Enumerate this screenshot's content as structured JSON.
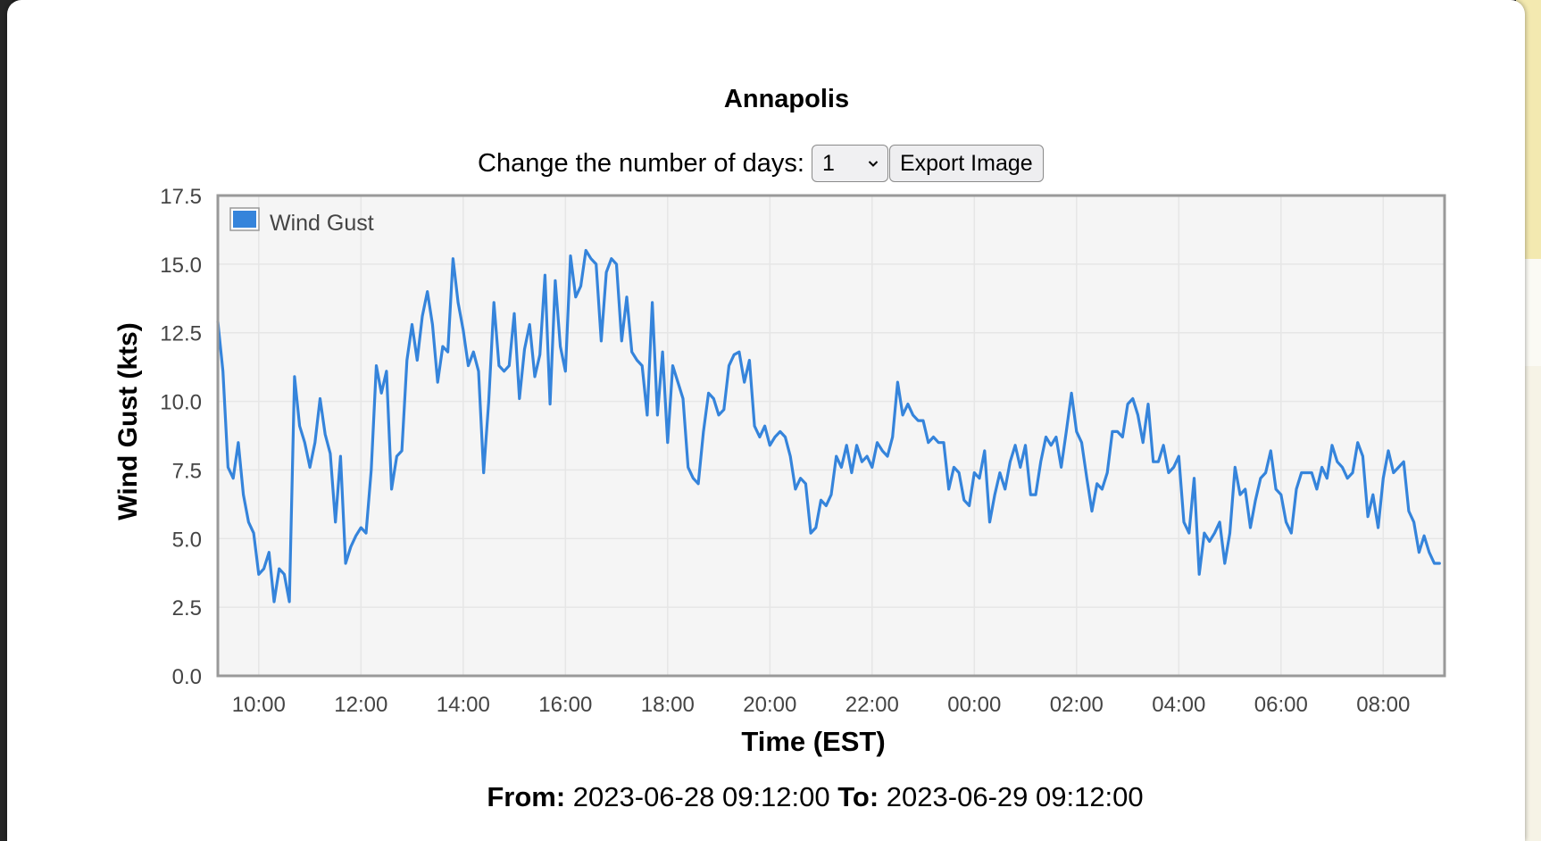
{
  "controls": {
    "days_label": "Change the number of days:",
    "days_value": "1",
    "export_label": "Export Image"
  },
  "footer": {
    "from_label": "From:",
    "from_value": "2023-06-28 09:12:00",
    "to_label": "To:",
    "to_value": "2023-06-29 09:12:00"
  },
  "colors": {
    "series": "#3584db",
    "plot_background": "#f5f5f5",
    "plot_border": "#999999",
    "grid": "#e6e6e6"
  },
  "chart_data": {
    "type": "line",
    "title": "Annapolis",
    "xlabel": "Time (EST)",
    "ylabel": "Wind Gust (kts)",
    "xlim": [
      "09:12",
      "09:12 (+1 day)"
    ],
    "ylim": [
      0,
      17.5
    ],
    "x_ticks": [
      "10:00",
      "12:00",
      "14:00",
      "16:00",
      "18:00",
      "20:00",
      "22:00",
      "00:00",
      "02:00",
      "04:00",
      "06:00",
      "08:00"
    ],
    "y_ticks": [
      "0.0",
      "2.5",
      "5.0",
      "7.5",
      "10.0",
      "12.5",
      "15.0",
      "17.5"
    ],
    "grid": true,
    "legend": {
      "position": "top-left",
      "entries": [
        "Wind Gust"
      ]
    },
    "x_unit": "minutes after 2023-06-28 09:12",
    "series": [
      {
        "name": "Wind Gust",
        "color": "#3584db",
        "values": [
          [
            0,
            12.9
          ],
          [
            6,
            11.1
          ],
          [
            12,
            7.6
          ],
          [
            18,
            7.2
          ],
          [
            24,
            8.5
          ],
          [
            30,
            6.6
          ],
          [
            36,
            5.6
          ],
          [
            42,
            5.2
          ],
          [
            48,
            3.7
          ],
          [
            54,
            3.9
          ],
          [
            60,
            4.5
          ],
          [
            66,
            2.7
          ],
          [
            72,
            3.9
          ],
          [
            78,
            3.7
          ],
          [
            84,
            2.7
          ],
          [
            90,
            10.9
          ],
          [
            96,
            9.1
          ],
          [
            102,
            8.5
          ],
          [
            108,
            7.6
          ],
          [
            114,
            8.5
          ],
          [
            120,
            10.1
          ],
          [
            126,
            8.8
          ],
          [
            132,
            8.1
          ],
          [
            138,
            5.6
          ],
          [
            144,
            8.0
          ],
          [
            150,
            4.1
          ],
          [
            156,
            4.7
          ],
          [
            162,
            5.1
          ],
          [
            168,
            5.4
          ],
          [
            174,
            5.2
          ],
          [
            180,
            7.5
          ],
          [
            186,
            11.3
          ],
          [
            192,
            10.3
          ],
          [
            198,
            11.1
          ],
          [
            204,
            6.8
          ],
          [
            210,
            8.0
          ],
          [
            216,
            8.2
          ],
          [
            222,
            11.5
          ],
          [
            228,
            12.8
          ],
          [
            234,
            11.5
          ],
          [
            240,
            13.1
          ],
          [
            246,
            14.0
          ],
          [
            252,
            12.8
          ],
          [
            258,
            10.7
          ],
          [
            264,
            12.0
          ],
          [
            270,
            11.8
          ],
          [
            276,
            15.2
          ],
          [
            282,
            13.6
          ],
          [
            288,
            12.6
          ],
          [
            294,
            11.3
          ],
          [
            300,
            11.8
          ],
          [
            306,
            11.1
          ],
          [
            312,
            7.4
          ],
          [
            318,
            10.0
          ],
          [
            324,
            13.6
          ],
          [
            330,
            11.3
          ],
          [
            336,
            11.1
          ],
          [
            342,
            11.3
          ],
          [
            348,
            13.2
          ],
          [
            354,
            10.1
          ],
          [
            360,
            11.9
          ],
          [
            366,
            12.8
          ],
          [
            372,
            10.9
          ],
          [
            378,
            11.7
          ],
          [
            384,
            14.6
          ],
          [
            390,
            9.9
          ],
          [
            396,
            14.4
          ],
          [
            402,
            12.0
          ],
          [
            408,
            11.1
          ],
          [
            414,
            15.3
          ],
          [
            420,
            13.8
          ],
          [
            426,
            14.2
          ],
          [
            432,
            15.5
          ],
          [
            438,
            15.2
          ],
          [
            444,
            15.0
          ],
          [
            450,
            12.2
          ],
          [
            456,
            14.7
          ],
          [
            462,
            15.2
          ],
          [
            468,
            15.0
          ],
          [
            474,
            12.2
          ],
          [
            480,
            13.8
          ],
          [
            486,
            11.8
          ],
          [
            492,
            11.5
          ],
          [
            498,
            11.3
          ],
          [
            504,
            9.5
          ],
          [
            510,
            13.6
          ],
          [
            516,
            9.5
          ],
          [
            522,
            11.8
          ],
          [
            528,
            8.5
          ],
          [
            534,
            11.3
          ],
          [
            540,
            10.7
          ],
          [
            546,
            10.1
          ],
          [
            552,
            7.6
          ],
          [
            558,
            7.2
          ],
          [
            564,
            7.0
          ],
          [
            570,
            8.9
          ],
          [
            576,
            10.3
          ],
          [
            582,
            10.1
          ],
          [
            588,
            9.5
          ],
          [
            594,
            9.7
          ],
          [
            600,
            11.3
          ],
          [
            606,
            11.7
          ],
          [
            612,
            11.8
          ],
          [
            618,
            10.7
          ],
          [
            624,
            11.5
          ],
          [
            630,
            9.1
          ],
          [
            636,
            8.7
          ],
          [
            642,
            9.1
          ],
          [
            648,
            8.4
          ],
          [
            654,
            8.7
          ],
          [
            660,
            8.9
          ],
          [
            666,
            8.7
          ],
          [
            672,
            8.0
          ],
          [
            678,
            6.8
          ],
          [
            684,
            7.2
          ],
          [
            690,
            7.0
          ],
          [
            696,
            5.2
          ],
          [
            702,
            5.4
          ],
          [
            708,
            6.4
          ],
          [
            714,
            6.2
          ],
          [
            720,
            6.6
          ],
          [
            726,
            8.0
          ],
          [
            732,
            7.6
          ],
          [
            738,
            8.4
          ],
          [
            744,
            7.4
          ],
          [
            750,
            8.4
          ],
          [
            756,
            7.8
          ],
          [
            762,
            8.0
          ],
          [
            768,
            7.6
          ],
          [
            774,
            8.5
          ],
          [
            780,
            8.2
          ],
          [
            786,
            8.0
          ],
          [
            792,
            8.7
          ],
          [
            798,
            10.7
          ],
          [
            804,
            9.5
          ],
          [
            810,
            9.9
          ],
          [
            816,
            9.5
          ],
          [
            822,
            9.3
          ],
          [
            828,
            9.3
          ],
          [
            834,
            8.5
          ],
          [
            840,
            8.7
          ],
          [
            846,
            8.5
          ],
          [
            852,
            8.5
          ],
          [
            858,
            6.8
          ],
          [
            864,
            7.6
          ],
          [
            870,
            7.4
          ],
          [
            876,
            6.4
          ],
          [
            882,
            6.2
          ],
          [
            888,
            7.4
          ],
          [
            894,
            7.2
          ],
          [
            900,
            8.2
          ],
          [
            906,
            5.6
          ],
          [
            912,
            6.6
          ],
          [
            918,
            7.4
          ],
          [
            924,
            6.8
          ],
          [
            930,
            7.8
          ],
          [
            936,
            8.4
          ],
          [
            942,
            7.6
          ],
          [
            948,
            8.4
          ],
          [
            954,
            6.6
          ],
          [
            960,
            6.6
          ],
          [
            966,
            7.8
          ],
          [
            972,
            8.7
          ],
          [
            978,
            8.4
          ],
          [
            984,
            8.7
          ],
          [
            990,
            7.6
          ],
          [
            996,
            8.9
          ],
          [
            1002,
            10.3
          ],
          [
            1008,
            8.9
          ],
          [
            1014,
            8.5
          ],
          [
            1020,
            7.2
          ],
          [
            1026,
            6.0
          ],
          [
            1032,
            7.0
          ],
          [
            1038,
            6.8
          ],
          [
            1044,
            7.4
          ],
          [
            1050,
            8.9
          ],
          [
            1056,
            8.9
          ],
          [
            1062,
            8.7
          ],
          [
            1068,
            9.9
          ],
          [
            1074,
            10.1
          ],
          [
            1080,
            9.5
          ],
          [
            1086,
            8.5
          ],
          [
            1092,
            9.9
          ],
          [
            1098,
            7.8
          ],
          [
            1104,
            7.8
          ],
          [
            1110,
            8.4
          ],
          [
            1116,
            7.4
          ],
          [
            1122,
            7.6
          ],
          [
            1128,
            8.0
          ],
          [
            1134,
            5.6
          ],
          [
            1140,
            5.2
          ],
          [
            1146,
            7.2
          ],
          [
            1152,
            3.7
          ],
          [
            1158,
            5.2
          ],
          [
            1164,
            4.9
          ],
          [
            1170,
            5.2
          ],
          [
            1176,
            5.6
          ],
          [
            1182,
            4.1
          ],
          [
            1188,
            5.2
          ],
          [
            1194,
            7.6
          ],
          [
            1200,
            6.6
          ],
          [
            1206,
            6.8
          ],
          [
            1212,
            5.4
          ],
          [
            1218,
            6.4
          ],
          [
            1224,
            7.2
          ],
          [
            1230,
            7.4
          ],
          [
            1236,
            8.2
          ],
          [
            1242,
            6.8
          ],
          [
            1248,
            6.6
          ],
          [
            1254,
            5.6
          ],
          [
            1260,
            5.2
          ],
          [
            1266,
            6.8
          ],
          [
            1272,
            7.4
          ],
          [
            1278,
            7.4
          ],
          [
            1284,
            7.4
          ],
          [
            1290,
            6.8
          ],
          [
            1296,
            7.6
          ],
          [
            1302,
            7.2
          ],
          [
            1308,
            8.4
          ],
          [
            1314,
            7.8
          ],
          [
            1320,
            7.6
          ],
          [
            1326,
            7.2
          ],
          [
            1332,
            7.4
          ],
          [
            1338,
            8.5
          ],
          [
            1344,
            8.0
          ],
          [
            1350,
            5.8
          ],
          [
            1356,
            6.6
          ],
          [
            1362,
            5.4
          ],
          [
            1368,
            7.2
          ],
          [
            1374,
            8.2
          ],
          [
            1380,
            7.4
          ],
          [
            1386,
            7.6
          ],
          [
            1392,
            7.8
          ],
          [
            1398,
            6.0
          ],
          [
            1404,
            5.6
          ],
          [
            1410,
            4.5
          ],
          [
            1416,
            5.1
          ],
          [
            1422,
            4.5
          ],
          [
            1428,
            4.1
          ],
          [
            1434,
            4.1
          ]
        ]
      }
    ]
  }
}
